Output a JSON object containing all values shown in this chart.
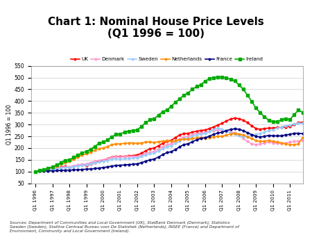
{
  "title": "Chart 1: Nominal House Price Levels\n(Q1 1996 = 100)",
  "ylabel": "Q1 1996 = 100",
  "ylim": [
    50,
    550
  ],
  "yticks": [
    50,
    100,
    150,
    200,
    250,
    300,
    350,
    400,
    450,
    500,
    550
  ],
  "source_text": "Sources: Department of Communities and Local Government (UK), StatBank Denmark (Denmark), Statistics\nSweden (Sweden), Statline Centraal Bureau voor De Statistiek (Netherlands), INSEE (France) and Department of\nEnvironment, Community and Local Government (Ireland).",
  "xtick_labels": [
    "Q1 1996",
    "Q1 1997",
    "Q1 1998",
    "Q1 1999",
    "Q1 2000",
    "Q1 2001",
    "Q1 2002",
    "Q1 2003",
    "Q1 2004",
    "Q1 2005",
    "Q1 2006",
    "Q1 2007",
    "Q1 2008",
    "Q1 2009",
    "Q1 2010",
    "Q1 2011"
  ],
  "xtick_positions": [
    0,
    4,
    8,
    12,
    16,
    20,
    24,
    28,
    32,
    36,
    40,
    44,
    48,
    52,
    56,
    60
  ],
  "series": {
    "UK": {
      "color": "#FF0000",
      "marker": "o",
      "markersize": 2.0,
      "linewidth": 1.2,
      "values": [
        100,
        103,
        107,
        110,
        113,
        116,
        119,
        122,
        118,
        122,
        127,
        130,
        125,
        132,
        138,
        143,
        148,
        155,
        162,
        165,
        163,
        165,
        167,
        168,
        171,
        178,
        188,
        197,
        200,
        210,
        220,
        228,
        233,
        245,
        255,
        262,
        262,
        268,
        272,
        275,
        277,
        283,
        290,
        298,
        305,
        315,
        323,
        328,
        325,
        318,
        308,
        295,
        283,
        280,
        283,
        285,
        285,
        288,
        288,
        290,
        292,
        300,
        308,
        310
      ]
    },
    "Denmark": {
      "color": "#FF99CC",
      "marker": "o",
      "markersize": 2.0,
      "linewidth": 1.2,
      "values": [
        100,
        103,
        107,
        110,
        113,
        116,
        118,
        120,
        120,
        124,
        128,
        131,
        132,
        138,
        144,
        148,
        151,
        155,
        160,
        163,
        162,
        163,
        165,
        165,
        165,
        170,
        177,
        183,
        185,
        195,
        205,
        215,
        218,
        228,
        238,
        248,
        250,
        258,
        262,
        265,
        265,
        272,
        275,
        277,
        275,
        270,
        268,
        265,
        255,
        240,
        228,
        218,
        215,
        218,
        222,
        225,
        222,
        220,
        220,
        222,
        225,
        228,
        230,
        232
      ]
    },
    "Sweden": {
      "color": "#99CCFF",
      "marker": "o",
      "markersize": 2.0,
      "linewidth": 1.2,
      "values": [
        100,
        102,
        104,
        107,
        109,
        112,
        115,
        118,
        118,
        121,
        124,
        127,
        128,
        132,
        137,
        141,
        144,
        148,
        152,
        155,
        153,
        154,
        156,
        157,
        158,
        163,
        170,
        176,
        178,
        187,
        197,
        207,
        210,
        220,
        230,
        240,
        242,
        250,
        256,
        260,
        262,
        270,
        279,
        286,
        280,
        272,
        265,
        258,
        252,
        248,
        250,
        255,
        258,
        262,
        268,
        275,
        278,
        285,
        290,
        295,
        298,
        303,
        305,
        305
      ]
    },
    "Netherlands": {
      "color": "#FF8C00",
      "marker": "o",
      "markersize": 2.0,
      "linewidth": 1.2,
      "values": [
        100,
        104,
        109,
        114,
        118,
        124,
        131,
        138,
        143,
        152,
        162,
        171,
        175,
        183,
        191,
        198,
        200,
        207,
        214,
        218,
        218,
        220,
        222,
        222,
        220,
        222,
        225,
        226,
        224,
        227,
        230,
        231,
        229,
        232,
        236,
        238,
        237,
        240,
        243,
        244,
        242,
        245,
        248,
        250,
        250,
        255,
        260,
        263,
        260,
        255,
        248,
        240,
        232,
        228,
        230,
        232,
        228,
        225,
        222,
        218,
        215,
        215,
        217,
        245
      ]
    },
    "France": {
      "color": "#000080",
      "marker": "o",
      "markersize": 2.0,
      "linewidth": 1.2,
      "values": [
        100,
        101,
        102,
        103,
        103,
        104,
        105,
        106,
        106,
        107,
        108,
        109,
        110,
        111,
        113,
        115,
        117,
        120,
        123,
        126,
        127,
        128,
        130,
        131,
        133,
        138,
        144,
        150,
        153,
        162,
        172,
        181,
        184,
        194,
        205,
        215,
        218,
        227,
        235,
        241,
        244,
        251,
        258,
        264,
        267,
        274,
        279,
        282,
        280,
        274,
        265,
        257,
        250,
        247,
        250,
        254,
        252,
        252,
        252,
        256,
        258,
        263,
        263,
        261
      ]
    },
    "Ireland": {
      "color": "#00AA00",
      "marker": "s",
      "markersize": 2.5,
      "linewidth": 1.2,
      "values": [
        100,
        104,
        108,
        113,
        120,
        128,
        138,
        148,
        150,
        160,
        170,
        180,
        185,
        195,
        207,
        220,
        225,
        235,
        248,
        258,
        260,
        268,
        272,
        275,
        278,
        292,
        308,
        320,
        325,
        340,
        355,
        362,
        378,
        395,
        410,
        425,
        435,
        450,
        462,
        470,
        485,
        495,
        500,
        503,
        502,
        498,
        493,
        487,
        468,
        450,
        425,
        398,
        370,
        350,
        333,
        318,
        312,
        313,
        320,
        325,
        322,
        342,
        362,
        352
      ]
    }
  },
  "legend_order": [
    "UK",
    "Denmark",
    "Sweden",
    "Netherlands",
    "France",
    "Ireland"
  ],
  "background_color": "#FFFFFF",
  "plot_background": "#FFFFFF"
}
